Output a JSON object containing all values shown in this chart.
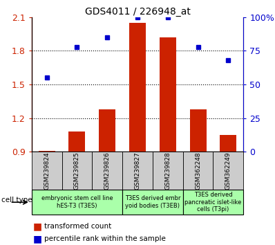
{
  "title": "GDS4011 / 226948_at",
  "samples": [
    "GSM239824",
    "GSM239825",
    "GSM239826",
    "GSM239827",
    "GSM239828",
    "GSM362248",
    "GSM362249"
  ],
  "red_values": [
    0.912,
    1.08,
    1.28,
    2.05,
    1.92,
    1.28,
    1.05
  ],
  "blue_values": [
    55,
    78,
    85,
    100,
    100,
    78,
    68
  ],
  "ylim_left": [
    0.9,
    2.1
  ],
  "ylim_right": [
    0,
    100
  ],
  "yticks_left": [
    0.9,
    1.2,
    1.5,
    1.8,
    2.1
  ],
  "yticks_right": [
    0,
    25,
    50,
    75,
    100
  ],
  "ytick_labels_right": [
    "0",
    "25",
    "50",
    "75",
    "100%"
  ],
  "bar_bottom": 0.9,
  "bar_color": "#cc2200",
  "dot_color": "#0000cc",
  "cell_type_groups": [
    {
      "label": "embryonic stem cell line\nhES-T3 (T3ES)",
      "start": 0,
      "end": 3
    },
    {
      "label": "T3ES derived embr\nyoid bodies (T3EB)",
      "start": 3,
      "end": 5
    },
    {
      "label": "T3ES derived\npancreatic islet-like\ncells (T3pi)",
      "start": 5,
      "end": 7
    }
  ],
  "group_color": "#aaffaa",
  "legend_tc_label": "transformed count",
  "legend_pr_label": "percentile rank within the sample",
  "cell_type_label": "cell type",
  "tick_color_left": "#cc2200",
  "tick_color_right": "#0000cc",
  "xticklabel_bg": "#cccccc"
}
